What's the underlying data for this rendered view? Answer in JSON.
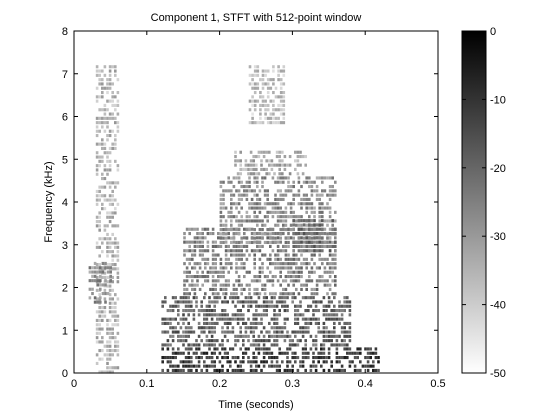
{
  "chart_data": {
    "type": "heatmap",
    "title": "Component 1, STFT with 512-point window",
    "xlabel": "Time (seconds)",
    "ylabel": "Frequency (kHz)",
    "xlim": [
      0,
      0.5
    ],
    "ylim": [
      0,
      8
    ],
    "x_ticks": [
      "0",
      "0.1",
      "0.2",
      "0.3",
      "0.4",
      "0.5"
    ],
    "y_ticks": [
      "0",
      "1",
      "2",
      "3",
      "4",
      "5",
      "6",
      "7",
      "8"
    ],
    "colorbar": {
      "range": [
        -50,
        0
      ],
      "ticks": [
        "0",
        "-10",
        "-20",
        "-30",
        "-40",
        "-50"
      ],
      "colormap": "gray (white = -50 dB, black = 0 dB)"
    },
    "regions": [
      {
        "t": [
          0.03,
          0.06
        ],
        "f": [
          0.0,
          7.2
        ],
        "level": -36
      },
      {
        "t": [
          0.02,
          0.05
        ],
        "f": [
          1.6,
          2.6
        ],
        "level": -28
      },
      {
        "t": [
          0.12,
          0.42
        ],
        "f": [
          0.0,
          0.6
        ],
        "level": -12
      },
      {
        "t": [
          0.12,
          0.38
        ],
        "f": [
          0.6,
          1.8
        ],
        "level": -20
      },
      {
        "t": [
          0.15,
          0.36
        ],
        "f": [
          1.8,
          3.4
        ],
        "level": -26
      },
      {
        "t": [
          0.2,
          0.36
        ],
        "f": [
          3.0,
          4.6
        ],
        "level": -28
      },
      {
        "t": [
          0.22,
          0.32
        ],
        "f": [
          4.6,
          5.2
        ],
        "level": -34
      },
      {
        "t": [
          0.24,
          0.29
        ],
        "f": [
          5.8,
          7.2
        ],
        "level": -38
      },
      {
        "t": [
          0.3,
          0.36
        ],
        "f": [
          2.8,
          3.6
        ],
        "level": -22
      }
    ]
  }
}
